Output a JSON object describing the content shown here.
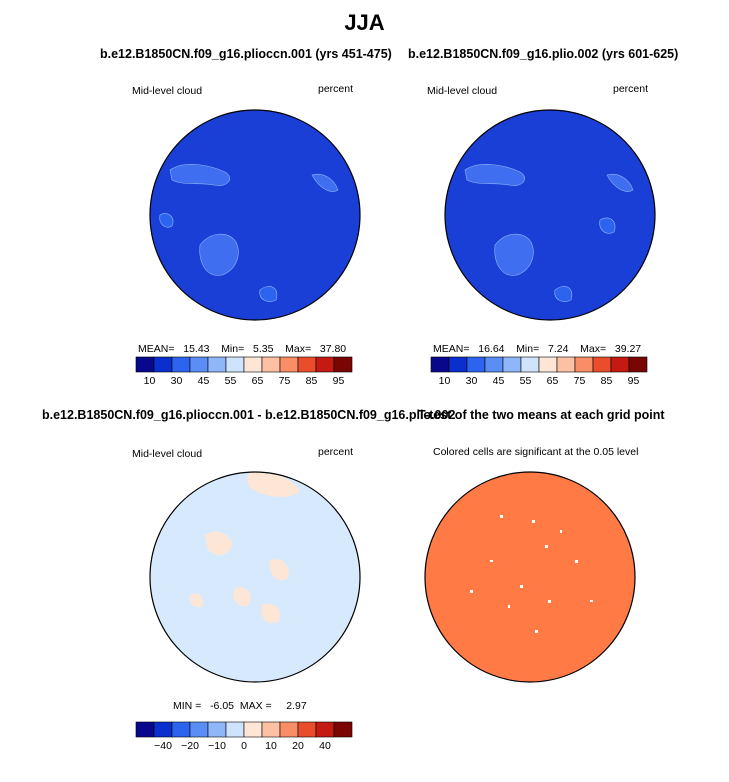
{
  "title": "JJA",
  "colors": {
    "ocean_dark_blue": "#1a3fd6",
    "cloud_lighter_blue": "#3f6ff0",
    "diff_light_blue": "#d7eafd",
    "diff_light_peach": "#fde6d6",
    "ttest_orange": "#ff7a45",
    "coast": "#000000"
  },
  "panels": [
    {
      "title": "b.e12.B1850CN.f09_g16.plioccn.001 (yrs 451-475)",
      "left_label": "Mid-level cloud",
      "right_label": "percent",
      "stats": {
        "mean_label": "MEAN=",
        "mean": "15.43",
        "min_label": "Min=",
        "min": "5.35",
        "max_label": "Max=",
        "max": "37.80"
      },
      "colorbar_labels": [
        "10",
        "30",
        "45",
        "55",
        "65",
        "75",
        "85",
        "95"
      ]
    },
    {
      "title": "b.e12.B1850CN.f09_g16.plio.002 (yrs 601-625)",
      "left_label": "Mid-level cloud",
      "right_label": "percent",
      "stats": {
        "mean_label": "MEAN=",
        "mean": "16.64",
        "min_label": "Min=",
        "min": "7.24",
        "max_label": "Max=",
        "max": "39.27"
      },
      "colorbar_labels": [
        "10",
        "30",
        "45",
        "55",
        "65",
        "75",
        "85",
        "95"
      ]
    },
    {
      "title": "b.e12.B1850CN.f09_g16.plioccn.001 - b.e12.B1850CN.f09_g16.plio.002",
      "left_label": "Mid-level cloud",
      "right_label": "percent",
      "stats": {
        "min_label": "MIN =",
        "min": "-6.05",
        "max_label": "MAX =",
        "max": "2.97"
      },
      "colorbar_labels": [
        "−40",
        "−20",
        "−10",
        "0",
        "10",
        "20",
        "40"
      ]
    },
    {
      "title": "T-test of the two means at each grid point",
      "subtitle": "Colored cells are significant at the 0.05 level"
    }
  ],
  "colorbar_colors": [
    "#08088c",
    "#0a2fcf",
    "#2c64f0",
    "#5a8ef5",
    "#8fb6f9",
    "#cfe3fd",
    "#fde6d6",
    "#fcc1a3",
    "#f88d66",
    "#ea4d2c",
    "#c41a12",
    "#7a0505"
  ],
  "chart_data": [
    {
      "type": "heatmap",
      "title": "b.e12.B1850CN.f09_g16.plioccn.001 (yrs 451-475)",
      "variable": "Mid-level cloud",
      "units": "percent",
      "mean": 15.43,
      "min": 5.35,
      "max": 37.8,
      "contour_levels": [
        10,
        30,
        45,
        55,
        65,
        75,
        85,
        95
      ]
    },
    {
      "type": "heatmap",
      "title": "b.e12.B1850CN.f09_g16.plio.002 (yrs 601-625)",
      "variable": "Mid-level cloud",
      "units": "percent",
      "mean": 16.64,
      "min": 7.24,
      "max": 39.27,
      "contour_levels": [
        10,
        30,
        45,
        55,
        65,
        75,
        85,
        95
      ]
    },
    {
      "type": "heatmap",
      "title": "b.e12.B1850CN.f09_g16.plioccn.001 - b.e12.B1850CN.f09_g16.plio.002",
      "variable": "Mid-level cloud",
      "units": "percent",
      "min": -6.05,
      "max": 2.97,
      "contour_levels": [
        -40,
        -20,
        -10,
        0,
        10,
        20,
        40
      ]
    },
    {
      "type": "heatmap",
      "title": "T-test of the two means at each grid point",
      "subtitle": "Colored cells are significant at the 0.05 level"
    }
  ]
}
